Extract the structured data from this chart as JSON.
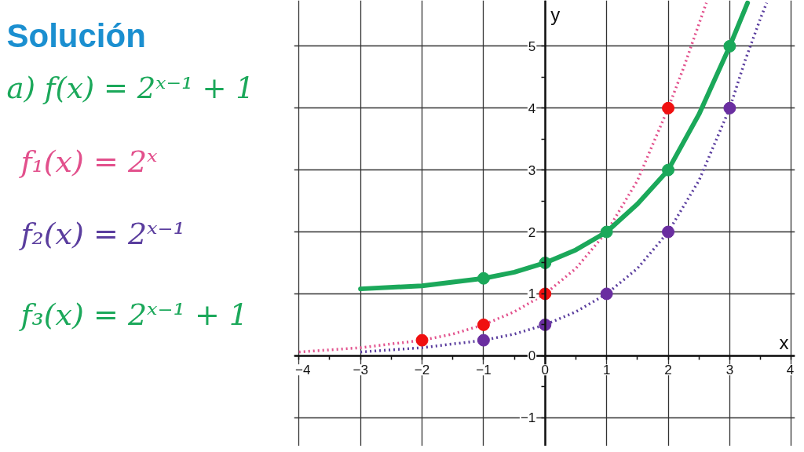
{
  "chart_data": {
    "type": "line",
    "title": "Solución",
    "subtitle": "a) f(x) = 2ˣ⁻¹ + 1",
    "xlabel": "x",
    "ylabel": "y",
    "xlim": [
      -4.08,
      4.06
    ],
    "ylim": [
      -1.46,
      5.74
    ],
    "xticks": [
      -4,
      -3,
      -2,
      -1,
      0,
      1,
      2,
      3,
      4
    ],
    "yticks": [
      -1,
      0,
      1,
      2,
      3,
      4,
      5
    ],
    "grid": true,
    "series": [
      {
        "name": "f₁(x) = 2ˣ",
        "color": "#e2508c",
        "line_style": "dotted",
        "x": [
          -4,
          -3,
          -2,
          -1.5,
          -1,
          -0.5,
          0,
          0.5,
          1,
          1.5,
          2,
          2.25,
          2.5,
          2.62
        ],
        "values": [
          0.06,
          0.13,
          0.25,
          0.35,
          0.5,
          0.71,
          1,
          1.41,
          2,
          2.83,
          4,
          4.65,
          5.36,
          5.7
        ]
      },
      {
        "name": "f₂(x) = 2ˣ⁻¹",
        "color": "#5a3d9e",
        "line_style": "dotted",
        "x": [
          -3,
          -2,
          -1,
          -0.5,
          0,
          0.5,
          1,
          1.5,
          2,
          2.5,
          3,
          3.25,
          3.5,
          3.6
        ],
        "values": [
          0.06,
          0.13,
          0.25,
          0.35,
          0.5,
          0.71,
          1,
          1.41,
          2,
          2.83,
          4,
          4.77,
          5.45,
          5.7
        ]
      },
      {
        "name": "f₃(x) = 2ˣ⁻¹ + 1",
        "color": "#1ba85a",
        "line_style": "solid",
        "x": [
          -3,
          -2,
          -1,
          -0.5,
          0,
          0.5,
          1,
          1.5,
          2,
          2.5,
          3,
          3.29
        ],
        "values": [
          1.08,
          1.13,
          1.25,
          1.35,
          1.5,
          1.71,
          2,
          2.45,
          3,
          3.9,
          5,
          5.7
        ]
      },
      {
        "type": "scatter",
        "color": "#f01010",
        "marker": "circle",
        "x": [
          -2,
          -1,
          0,
          2
        ],
        "values": [
          0.25,
          0.5,
          1,
          4
        ]
      },
      {
        "type": "scatter",
        "color": "#6a2ea0",
        "marker": "circle",
        "x": [
          -1,
          0,
          1,
          2,
          3
        ],
        "values": [
          0.25,
          0.5,
          1,
          2,
          4
        ]
      },
      {
        "type": "scatter",
        "color": "#1ba85a",
        "marker": "circle",
        "x": [
          -1,
          0,
          1,
          2,
          3
        ],
        "values": [
          1.25,
          1.5,
          2,
          3,
          5
        ]
      }
    ]
  }
}
